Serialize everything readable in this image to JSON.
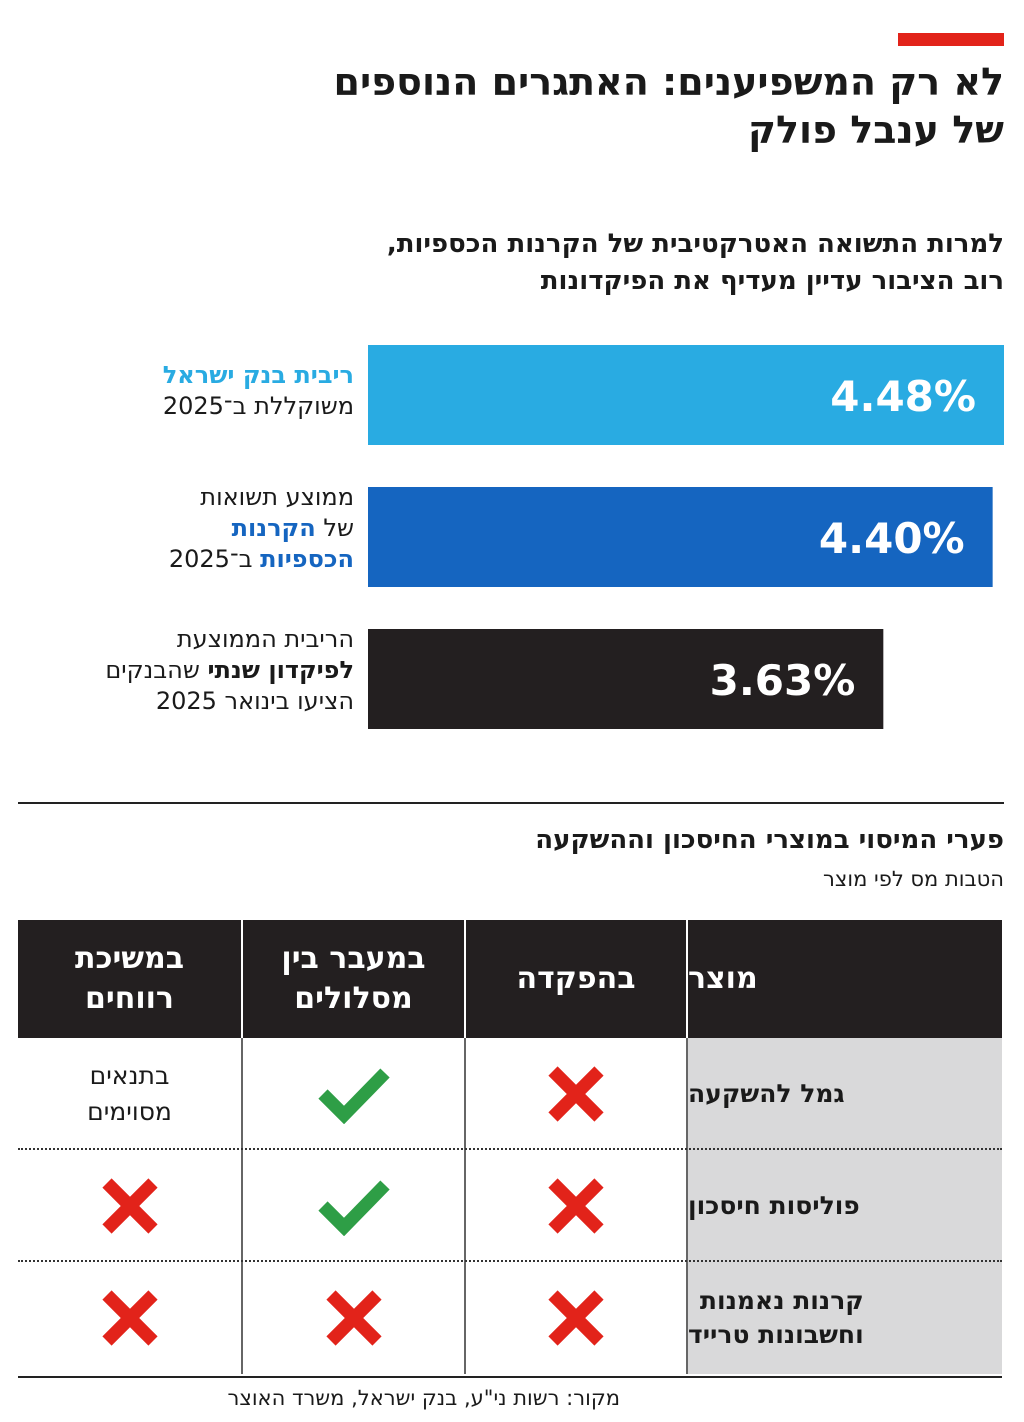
{
  "header": {
    "title_lines": [
      "לא רק המשפיענים: האתגרים הנוספים",
      "של ענבל פולק"
    ],
    "accent_color": "#e2231a"
  },
  "subtitle_lines": [
    "למרות התשואה האטרקטיבית של הקרנות הכספיות,",
    "רוב הציבור עדיין מעדיף את הפיקדונות"
  ],
  "chart_data": {
    "type": "bar",
    "orientation": "horizontal",
    "categories": [
      "ריבית בנק ישראל משוקללת ב־2025",
      "ממוצע תשואות של הקרנות הכספיות ב־2025",
      "הריבית הממוצעת לפיקדון שנתי שהבנקים הציעו בינואר 2025"
    ],
    "values": [
      4.48,
      4.4,
      3.63
    ],
    "value_labels": [
      "4.48%",
      "4.40%",
      "3.63%"
    ],
    "colors": [
      "#29abe2",
      "#1565c0",
      "#231f20"
    ],
    "unit": "%",
    "xlim": [
      0,
      4.48
    ]
  },
  "bar_labels": [
    {
      "lines": [
        [
          {
            "t": "ריבית בנק ישראל",
            "s": "hl-light"
          }
        ],
        [
          {
            "t": "משוקללת ב־2025",
            "s": ""
          }
        ]
      ]
    },
    {
      "lines": [
        [
          {
            "t": "ממוצע תשואות",
            "s": ""
          }
        ],
        [
          {
            "t": "של ",
            "s": ""
          },
          {
            "t": "הקרנות",
            "s": "hl-dark"
          }
        ],
        [
          {
            "t": "הכספיות",
            "s": "hl-dark"
          },
          {
            "t": " ב־2025",
            "s": ""
          }
        ]
      ]
    },
    {
      "lines": [
        [
          {
            "t": "הריבית הממוצעת",
            "s": ""
          }
        ],
        [
          {
            "t": "לפיקדון שנתי",
            "s": "hl-bold"
          },
          {
            "t": " שהבנקים",
            "s": ""
          }
        ],
        [
          {
            "t": "הציעו בינואר 2025",
            "s": ""
          }
        ]
      ]
    }
  ],
  "table": {
    "title": "פערי המיסוי במוצרי החיסכון וההשקעה",
    "subtitle": "הטבות מס לפי מוצר",
    "headers": {
      "product": [
        "מוצר"
      ],
      "deposit": [
        "בהפקדה"
      ],
      "transfer": [
        "במעבר בין",
        "מסלולים"
      ],
      "withdraw": [
        "במשיכת",
        "רווחים"
      ]
    },
    "rows": [
      {
        "product": [
          "גמל להשקעה"
        ],
        "deposit": "no",
        "transfer": "yes",
        "withdraw_text": [
          "בתנאים",
          "מסוימים"
        ]
      },
      {
        "product": [
          "פוליסות חיסכון"
        ],
        "deposit": "no",
        "transfer": "yes",
        "withdraw": "no"
      },
      {
        "product": [
          "קרנות נאמנות",
          "וחשבונות טרייד"
        ],
        "deposit": "no",
        "transfer": "no",
        "withdraw": "no"
      }
    ],
    "icon_yes": "check-icon",
    "icon_no": "x-icon",
    "yes_color": "#2e9e46",
    "no_color": "#e2231a"
  },
  "source": "מקור: רשות ני\"ע, בנק ישראל, משרד האוצר"
}
